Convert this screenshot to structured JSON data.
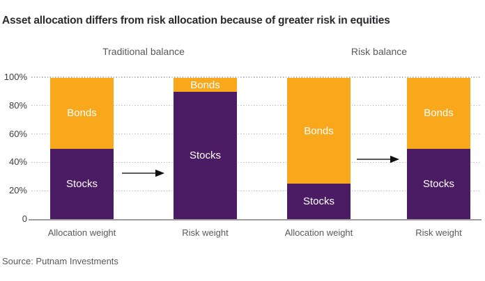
{
  "title": "Asset allocation differs from risk allocation because of greater risk in equities",
  "source": "Source: Putnam Investments",
  "colors": {
    "stocks_purple": "#4b1c64",
    "bonds_orange": "#f9a81b",
    "title_text": "#2a2a2e",
    "secondary_text": "#58595b",
    "tick_text": "#3f3f40",
    "gridline": "#b3b3b3",
    "axis_line": "#9c9c9c",
    "segment_label_text": "#ffffff",
    "arrow_line": "#5a5a5a",
    "arrow_head": "#111111"
  },
  "chart_data": {
    "type": "bar",
    "stacked": true,
    "orientation": "vertical",
    "unit": "percent",
    "ylim": [
      0,
      100
    ],
    "grid": "horizontal-dotted",
    "legend": "labels-inside-segments",
    "yticks": [
      {
        "value": 100,
        "label": "100%"
      },
      {
        "value": 80,
        "label": "80%"
      },
      {
        "value": 60,
        "label": "60%"
      },
      {
        "value": 40,
        "label": "40%"
      },
      {
        "value": 20,
        "label": "20%"
      },
      {
        "value": 0,
        "label": "0"
      }
    ],
    "series": [
      {
        "name": "Stocks",
        "color_key": "stocks_purple",
        "position": "bottom"
      },
      {
        "name": "Bonds",
        "color_key": "bonds_orange",
        "position": "top"
      }
    ],
    "groups": [
      {
        "label": "Traditional balance",
        "bars": [
          {
            "label": "Allocation weight",
            "values": {
              "Stocks": 50,
              "Bonds": 50
            }
          },
          {
            "label": "Risk weight",
            "values": {
              "Stocks": 90,
              "Bonds": 10
            }
          }
        ]
      },
      {
        "label": "Risk balance",
        "bars": [
          {
            "label": "Allocation weight",
            "values": {
              "Stocks": 25,
              "Bonds": 75
            }
          },
          {
            "label": "Risk weight",
            "values": {
              "Stocks": 50,
              "Bonds": 50
            }
          }
        ]
      }
    ],
    "annotations": [
      {
        "type": "arrow",
        "from": "Allocation weight",
        "to": "Risk weight",
        "group": "Traditional balance"
      },
      {
        "type": "arrow",
        "from": "Allocation weight",
        "to": "Risk weight",
        "group": "Risk balance"
      }
    ]
  }
}
